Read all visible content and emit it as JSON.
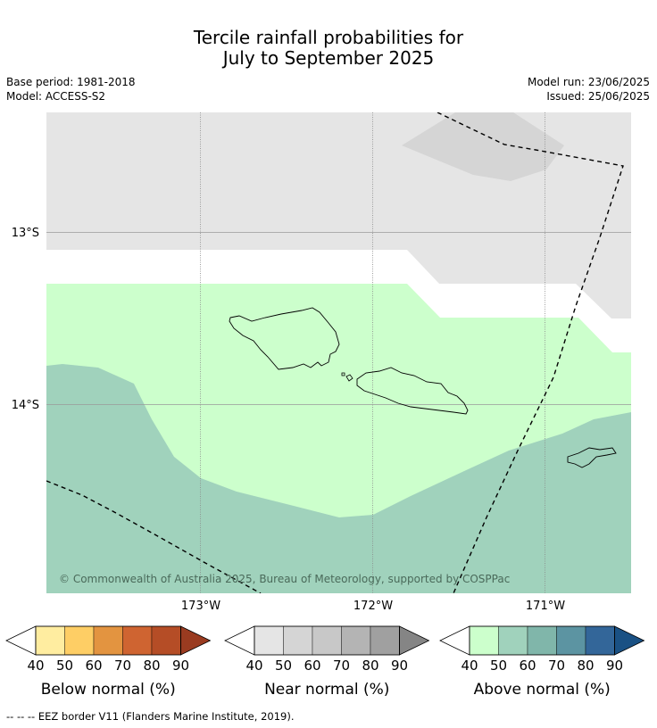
{
  "title": {
    "line1": "Tercile rainfall probabilities for",
    "line2": "July to September 2025"
  },
  "meta": {
    "base_period": "Base period: 1981-2018",
    "model": "Model: ACCESS-S2",
    "model_run": "Model run: 23/06/2025",
    "issued": "Issued: 25/06/2025"
  },
  "map": {
    "lat_labels": [
      "13°S",
      "14°S"
    ],
    "lon_labels": [
      "173°W",
      "172°W",
      "171°W"
    ],
    "copyright": "© Commonwealth of Australia 2025, Bureau of Meteorology, supported by COSPPac",
    "colors": {
      "near_normal_50_60": "#e5e5e5",
      "near_normal_60_70": "#d5d5d5",
      "above_normal_40_50": "#ccffcc",
      "above_normal_50_60": "#a0d2bc",
      "no_dominant": "#ffffff"
    }
  },
  "legends": [
    {
      "label": "Below normal (%)",
      "ticks": [
        "40",
        "50",
        "60",
        "70",
        "80",
        "90"
      ],
      "colors": [
        "#ffffff",
        "#ffeda0",
        "#fece65",
        "#e39440",
        "#cf6431",
        "#b54d26",
        "#9a3b20"
      ]
    },
    {
      "label": "Near normal (%)",
      "ticks": [
        "40",
        "50",
        "60",
        "70",
        "80",
        "90"
      ],
      "colors": [
        "#ffffff",
        "#e5e5e5",
        "#d5d5d5",
        "#c8c8c8",
        "#b4b4b4",
        "#a0a0a0",
        "#858585"
      ]
    },
    {
      "label": "Above normal (%)",
      "ticks": [
        "40",
        "50",
        "60",
        "70",
        "80",
        "90"
      ],
      "colors": [
        "#ffffff",
        "#ccffcc",
        "#a0d2bc",
        "#80b6aa",
        "#5c94a2",
        "#336699",
        "#1a5184"
      ]
    }
  ],
  "footnote": "--  --  -- EEZ border V11 (Flanders Marine Institute, 2019)."
}
